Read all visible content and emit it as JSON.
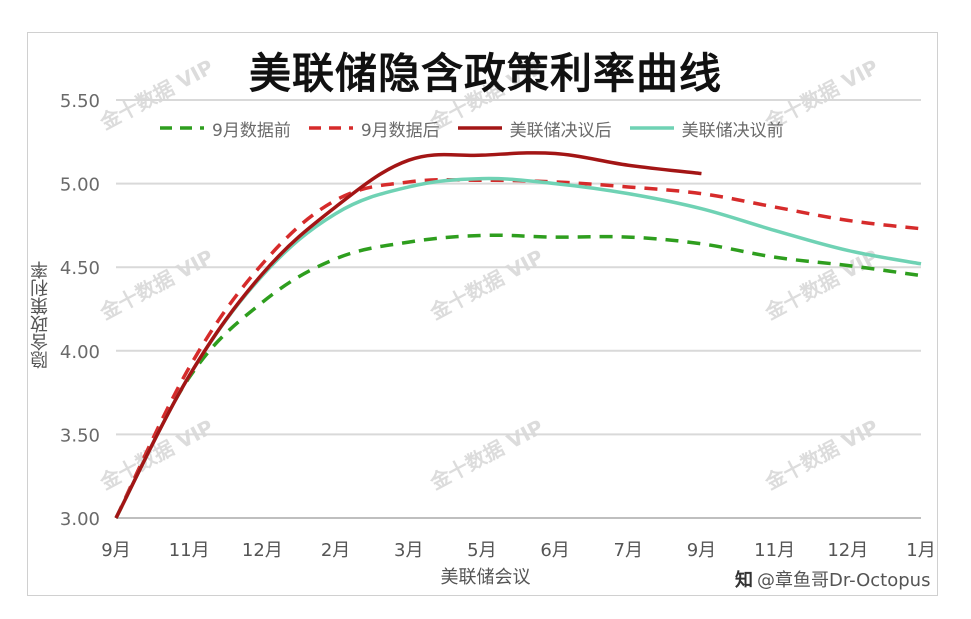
{
  "chart_data": {
    "type": "line",
    "title": "美联储隐含政策利率曲线",
    "xlabel": "美联储会议",
    "ylabel": "隐含政策利率",
    "categories": [
      "9月",
      "11月",
      "12月",
      "2月",
      "3月",
      "5月",
      "6月",
      "7月",
      "9月",
      "11月",
      "12月",
      "1月"
    ],
    "ylim": [
      3.0,
      5.5
    ],
    "yticks": [
      "3.00",
      "3.50",
      "4.00",
      "4.50",
      "5.00",
      "5.50"
    ],
    "grid": true,
    "legend_position": "top",
    "series": [
      {
        "name": "9月数据前",
        "color": "#2e9e1e",
        "style": "dashed",
        "values": [
          3.0,
          3.84,
          4.29,
          4.55,
          4.65,
          4.69,
          4.68,
          4.68,
          4.64,
          4.56,
          4.51,
          4.45
        ]
      },
      {
        "name": "9月数据后",
        "color": "#d62b2b",
        "style": "dashed",
        "values": [
          3.0,
          3.9,
          4.52,
          4.9,
          5.01,
          5.02,
          5.01,
          4.98,
          4.94,
          4.86,
          4.78,
          4.73
        ]
      },
      {
        "name": "美联储决议后",
        "color": "#a31515",
        "style": "solid",
        "values": [
          3.0,
          3.85,
          4.46,
          4.86,
          5.14,
          5.17,
          5.18,
          5.11,
          5.06,
          null,
          null,
          null
        ]
      },
      {
        "name": "美联储决议前",
        "color": "#6fd2b4",
        "style": "solid",
        "values": [
          3.0,
          3.85,
          4.45,
          4.82,
          4.98,
          5.03,
          5.0,
          4.94,
          4.85,
          4.72,
          4.6,
          4.52
        ]
      }
    ]
  },
  "watermark": {
    "text": "金十数据",
    "suffix": "VIP"
  },
  "credit": {
    "icon": "知",
    "text": "@章鱼哥Dr-Octopus"
  }
}
